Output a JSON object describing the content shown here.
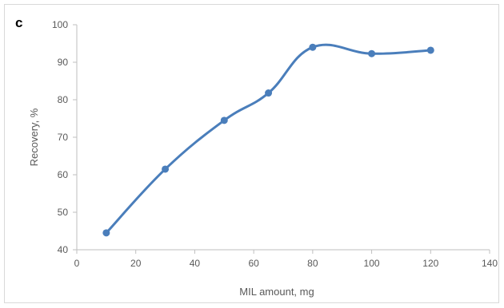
{
  "panel_label": "c",
  "chart_data": {
    "type": "line",
    "title": "",
    "xlabel": "MIL amount, mg",
    "ylabel": "Recovery, %",
    "xlim": [
      0,
      140
    ],
    "ylim": [
      40,
      100
    ],
    "x_ticks": [
      0,
      20,
      40,
      60,
      80,
      100,
      120,
      140
    ],
    "y_ticks": [
      40,
      50,
      60,
      70,
      80,
      90,
      100
    ],
    "grid": false,
    "legend": "none",
    "smooth": true,
    "series": [
      {
        "x": [
          10,
          30,
          50,
          65,
          80,
          100,
          120
        ],
        "values": [
          44.5,
          61.5,
          74.5,
          81.8,
          94,
          92.3,
          93.2
        ],
        "color": "#4a7ebb"
      }
    ]
  }
}
